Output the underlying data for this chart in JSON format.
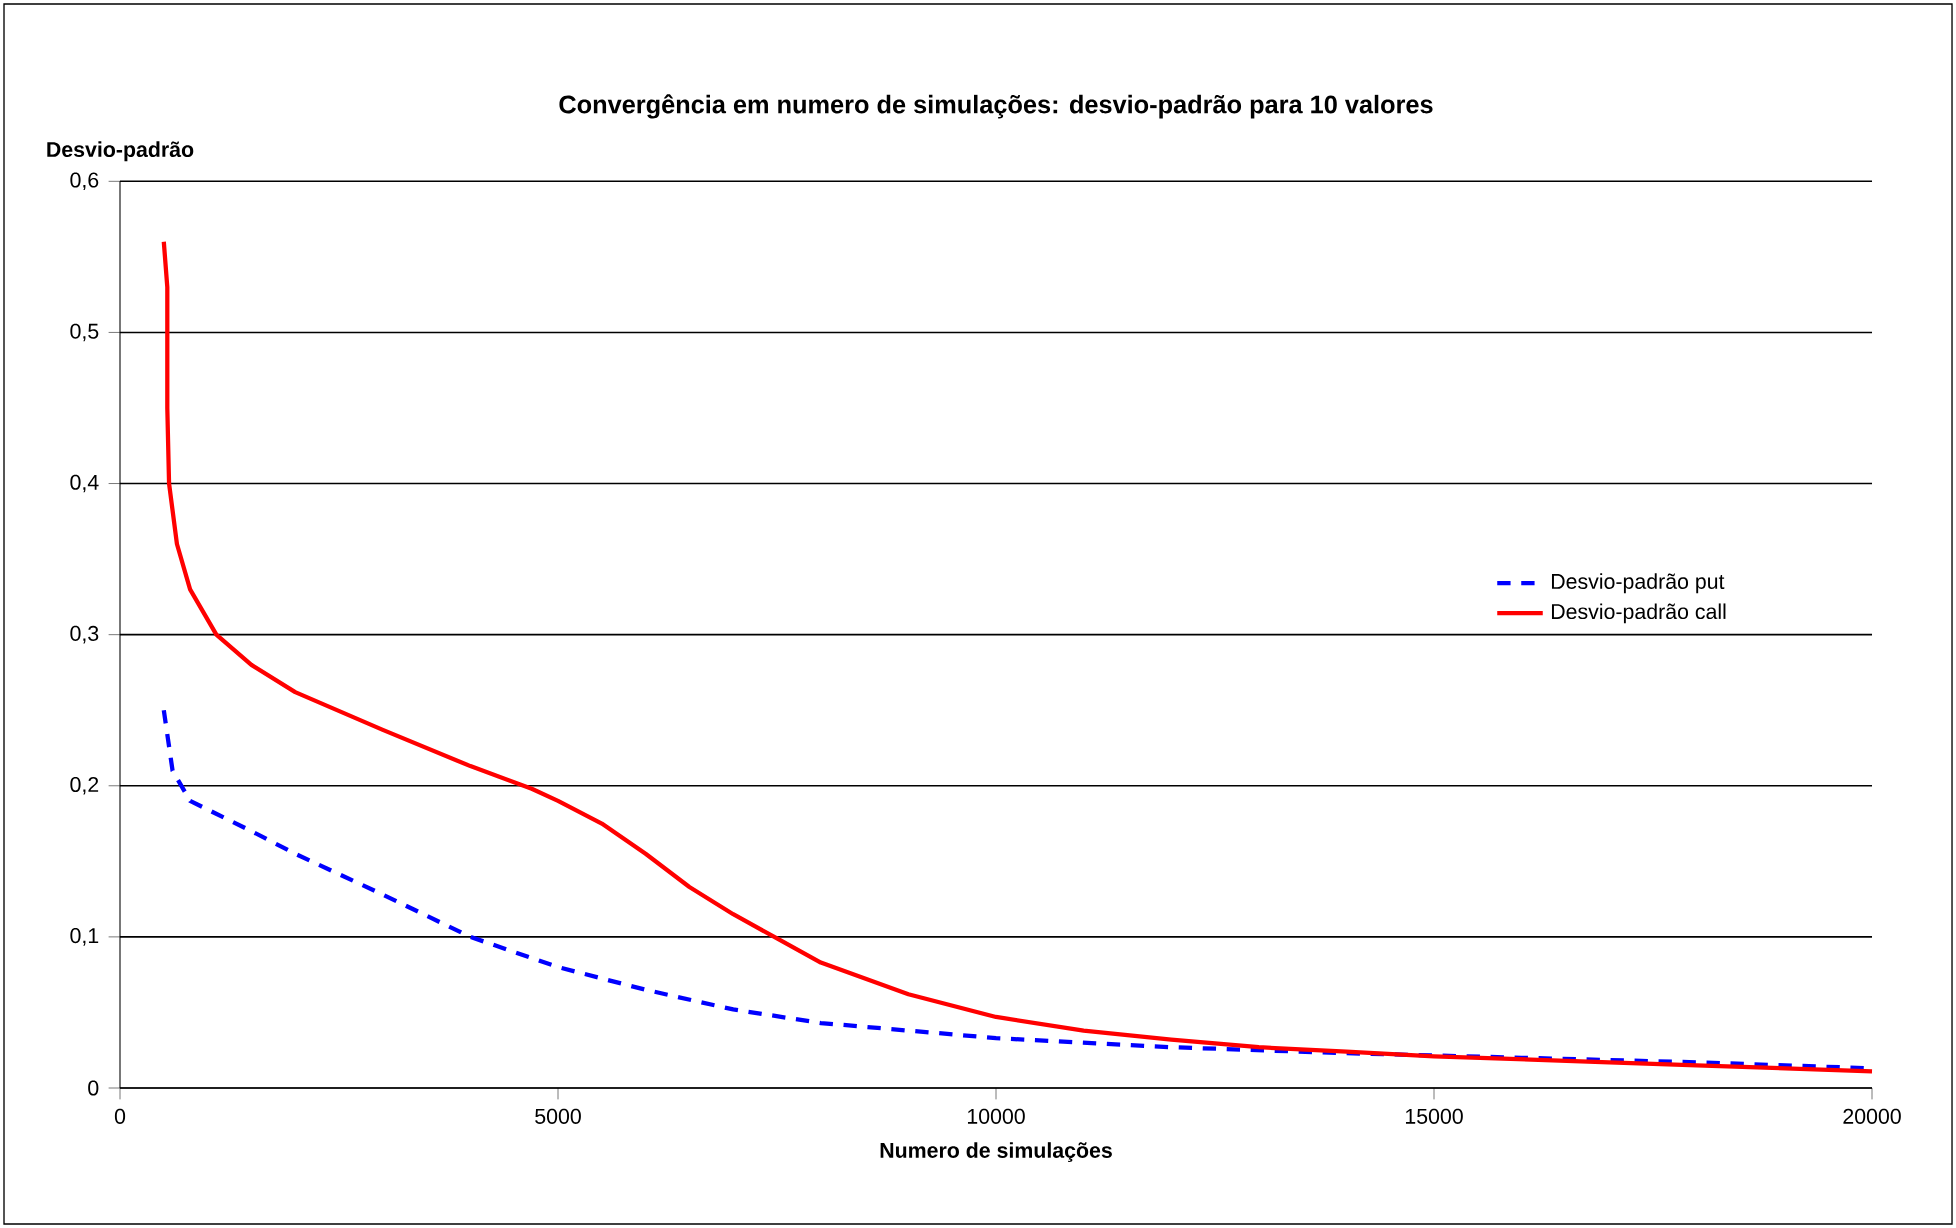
{
  "chart_data": {
    "type": "line",
    "title": "Convergência em numero de simulações: desvio-padrão para 10 valores",
    "xlabel": "Numero de simulações",
    "ylabel": "Desvio-padrão",
    "xlim": [
      0,
      20000
    ],
    "xticks": [
      0,
      5000,
      10000,
      15000,
      20000
    ],
    "ylim": [
      0,
      0.6
    ],
    "yticks": [
      {
        "value": 0,
        "label": "0"
      },
      {
        "value": 0.1,
        "label": "0,1"
      },
      {
        "value": 0.2,
        "label": "0,2"
      },
      {
        "value": 0.3,
        "label": "0,3"
      },
      {
        "value": 0.4,
        "label": "0,4"
      },
      {
        "value": 0.5,
        "label": "0,5"
      },
      {
        "value": 0.6,
        "label": "0,6"
      }
    ],
    "grid": "y",
    "legend": "right",
    "marker": "none",
    "series": [
      {
        "name": "Desvio-padrão put",
        "color": "#0000ff",
        "line_style": "dashed",
        "x": [
          500,
          600,
          800,
          1500,
          2000,
          3000,
          4000,
          5000,
          6000,
          7000,
          8000,
          9000,
          10000,
          12000,
          14000,
          16000,
          18000,
          20000
        ],
        "values": [
          0.25,
          0.21,
          0.19,
          0.17,
          0.155,
          0.128,
          0.1,
          0.08,
          0.065,
          0.052,
          0.043,
          0.038,
          0.033,
          0.027,
          0.023,
          0.02,
          0.017,
          0.013
        ]
      },
      {
        "name": "Desvio-padrão call",
        "color": "#ff0000",
        "line_style": "solid",
        "x": [
          500,
          540,
          540,
          560,
          650,
          800,
          1100,
          1500,
          2000,
          3000,
          4000,
          4700,
          5000,
          5500,
          6000,
          6500,
          7000,
          7500,
          8000,
          9000,
          10000,
          11000,
          12000,
          13000,
          14000,
          15000,
          16000,
          17000,
          18000,
          19000,
          20000
        ],
        "values": [
          0.56,
          0.53,
          0.45,
          0.4,
          0.36,
          0.33,
          0.3,
          0.28,
          0.262,
          0.237,
          0.213,
          0.198,
          0.19,
          0.175,
          0.155,
          0.133,
          0.115,
          0.099,
          0.083,
          0.062,
          0.047,
          0.038,
          0.032,
          0.027,
          0.024,
          0.021,
          0.019,
          0.017,
          0.015,
          0.013,
          0.011
        ]
      }
    ]
  }
}
